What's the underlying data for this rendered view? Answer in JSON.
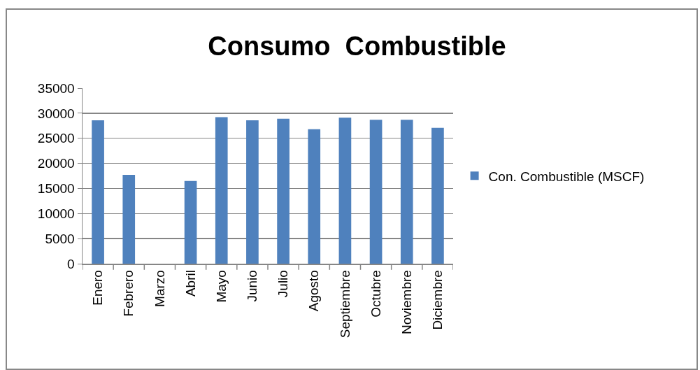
{
  "chart_data": {
    "type": "bar",
    "title": "Consumo  Combustible",
    "categories": [
      "Enero",
      "Febrero",
      "Marzo",
      "Abril",
      "Mayo",
      "Junio",
      "Julio",
      "Agosto",
      "Septiembre",
      "Octubre",
      "Noviembre",
      "Diciembre"
    ],
    "series": [
      {
        "name": "Con. Combustible (MSCF)",
        "color": "#4f81bd",
        "values": [
          28600,
          17700,
          null,
          16500,
          29200,
          28600,
          28900,
          26800,
          29100,
          28700,
          28700,
          27100
        ]
      }
    ],
    "ylim": [
      0,
      35000
    ],
    "yticks": [
      0,
      5000,
      10000,
      15000,
      20000,
      25000,
      30000,
      35000
    ],
    "grid": "y",
    "legend": "right"
  }
}
